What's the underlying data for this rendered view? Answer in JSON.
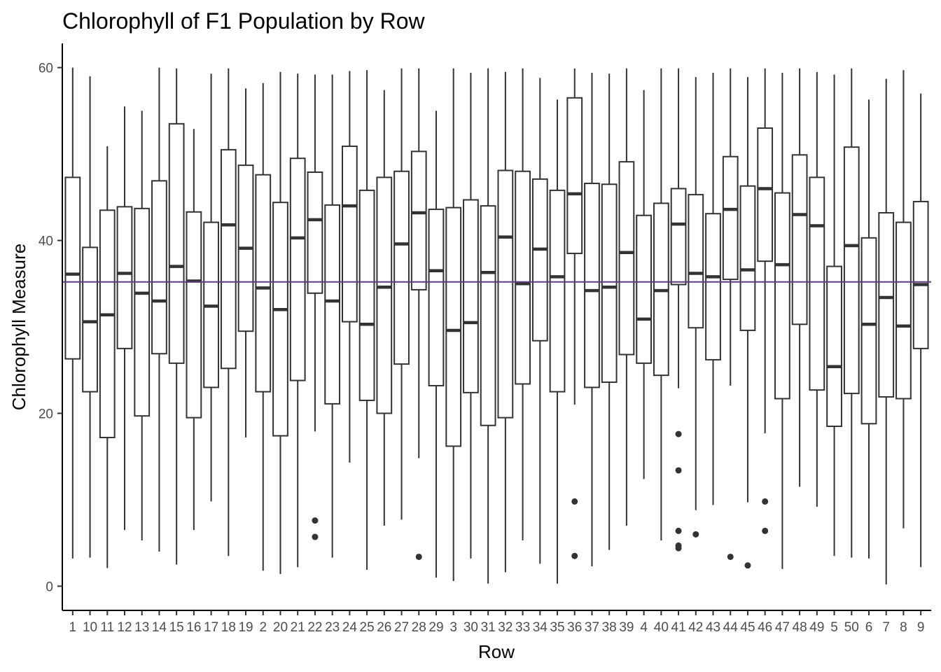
{
  "chart_data": {
    "type": "boxplot",
    "title": "Chlorophyll of F1 Population by Row",
    "xlabel": "Row",
    "ylabel": "Chlorophyll Measure",
    "ylim": [
      -2.8,
      62.8
    ],
    "yticks": [
      0,
      20,
      40,
      60
    ],
    "grid": false,
    "legend": "none",
    "reference_line": {
      "y": 35.2,
      "color": "#5e3c7e"
    },
    "colors": {
      "box": "#333333",
      "axis": "#000000",
      "tick_text": "#4d4d4d",
      "background": "#ffffff"
    },
    "categories": [
      "1",
      "10",
      "11",
      "12",
      "13",
      "14",
      "15",
      "16",
      "17",
      "18",
      "19",
      "2",
      "20",
      "21",
      "22",
      "23",
      "24",
      "25",
      "26",
      "27",
      "28",
      "29",
      "3",
      "30",
      "31",
      "32",
      "33",
      "34",
      "35",
      "36",
      "37",
      "38",
      "39",
      "4",
      "40",
      "41",
      "42",
      "43",
      "44",
      "45",
      "46",
      "47",
      "48",
      "49",
      "5",
      "50",
      "6",
      "7",
      "8",
      "9"
    ],
    "boxes": [
      {
        "label": "1",
        "min": 3.2,
        "q1": 26.3,
        "median": 36.1,
        "q3": 47.3,
        "max": 60.0,
        "outliers": []
      },
      {
        "label": "10",
        "min": 3.3,
        "q1": 22.5,
        "median": 30.6,
        "q3": 39.2,
        "max": 59.0,
        "outliers": []
      },
      {
        "label": "11",
        "min": 2.1,
        "q1": 17.2,
        "median": 31.4,
        "q3": 43.5,
        "max": 50.9,
        "outliers": []
      },
      {
        "label": "12",
        "min": 6.5,
        "q1": 27.5,
        "median": 36.2,
        "q3": 43.9,
        "max": 55.5,
        "outliers": []
      },
      {
        "label": "13",
        "min": 5.3,
        "q1": 19.7,
        "median": 33.9,
        "q3": 43.7,
        "max": 55.0,
        "outliers": []
      },
      {
        "label": "14",
        "min": 4.0,
        "q1": 26.9,
        "median": 33.0,
        "q3": 46.9,
        "max": 60.0,
        "outliers": []
      },
      {
        "label": "15",
        "min": 2.5,
        "q1": 25.8,
        "median": 37.0,
        "q3": 53.5,
        "max": 59.9,
        "outliers": []
      },
      {
        "label": "16",
        "min": 6.5,
        "q1": 19.5,
        "median": 35.3,
        "q3": 43.3,
        "max": 52.9,
        "outliers": []
      },
      {
        "label": "17",
        "min": 9.8,
        "q1": 23.0,
        "median": 32.4,
        "q3": 42.1,
        "max": 59.3,
        "outliers": []
      },
      {
        "label": "18",
        "min": 3.5,
        "q1": 25.2,
        "median": 41.8,
        "q3": 50.5,
        "max": 59.9,
        "outliers": []
      },
      {
        "label": "19",
        "min": 17.2,
        "q1": 29.5,
        "median": 39.1,
        "q3": 48.7,
        "max": 57.6,
        "outliers": []
      },
      {
        "label": "2",
        "min": 1.8,
        "q1": 22.5,
        "median": 34.5,
        "q3": 47.6,
        "max": 58.2,
        "outliers": []
      },
      {
        "label": "20",
        "min": 1.4,
        "q1": 17.4,
        "median": 32.0,
        "q3": 44.4,
        "max": 59.5,
        "outliers": []
      },
      {
        "label": "21",
        "min": 2.2,
        "q1": 23.8,
        "median": 40.3,
        "q3": 49.5,
        "max": 59.3,
        "outliers": []
      },
      {
        "label": "22",
        "min": 17.9,
        "q1": 33.9,
        "median": 42.4,
        "q3": 47.9,
        "max": 59.2,
        "outliers": [
          7.6,
          5.7
        ]
      },
      {
        "label": "23",
        "min": 3.3,
        "q1": 21.1,
        "median": 33.0,
        "q3": 44.1,
        "max": 59.2,
        "outliers": []
      },
      {
        "label": "24",
        "min": 14.3,
        "q1": 30.6,
        "median": 44.0,
        "q3": 50.9,
        "max": 59.6,
        "outliers": []
      },
      {
        "label": "25",
        "min": 1.9,
        "q1": 21.5,
        "median": 30.3,
        "q3": 45.8,
        "max": 59.7,
        "outliers": []
      },
      {
        "label": "26",
        "min": 7.0,
        "q1": 20.0,
        "median": 34.6,
        "q3": 47.3,
        "max": 57.4,
        "outliers": []
      },
      {
        "label": "27",
        "min": 7.7,
        "q1": 25.7,
        "median": 39.6,
        "q3": 48.0,
        "max": 59.9,
        "outliers": []
      },
      {
        "label": "28",
        "min": 14.8,
        "q1": 34.3,
        "median": 43.2,
        "q3": 50.3,
        "max": 59.9,
        "outliers": [
          3.4
        ]
      },
      {
        "label": "29",
        "min": 1.0,
        "q1": 23.2,
        "median": 36.5,
        "q3": 43.6,
        "max": 55.0,
        "outliers": []
      },
      {
        "label": "3",
        "min": 0.6,
        "q1": 16.2,
        "median": 29.6,
        "q3": 43.8,
        "max": 59.9,
        "outliers": []
      },
      {
        "label": "30",
        "min": 3.2,
        "q1": 22.4,
        "median": 30.5,
        "q3": 44.7,
        "max": 59.4,
        "outliers": []
      },
      {
        "label": "31",
        "min": 0.3,
        "q1": 18.6,
        "median": 36.3,
        "q3": 44.0,
        "max": 59.9,
        "outliers": []
      },
      {
        "label": "32",
        "min": 1.6,
        "q1": 19.5,
        "median": 40.4,
        "q3": 48.1,
        "max": 59.5,
        "outliers": []
      },
      {
        "label": "33",
        "min": 5.3,
        "q1": 23.4,
        "median": 35.0,
        "q3": 48.0,
        "max": 59.9,
        "outliers": []
      },
      {
        "label": "34",
        "min": 2.6,
        "q1": 28.4,
        "median": 39.0,
        "q3": 47.1,
        "max": 58.8,
        "outliers": []
      },
      {
        "label": "35",
        "min": 0.3,
        "q1": 22.5,
        "median": 35.8,
        "q3": 45.8,
        "max": 56.3,
        "outliers": []
      },
      {
        "label": "36",
        "min": 21.0,
        "q1": 38.5,
        "median": 45.4,
        "q3": 56.5,
        "max": 59.9,
        "outliers": [
          9.8,
          3.5
        ]
      },
      {
        "label": "37",
        "min": 2.3,
        "q1": 23.0,
        "median": 34.2,
        "q3": 46.6,
        "max": 59.4,
        "outliers": []
      },
      {
        "label": "38",
        "min": 4.2,
        "q1": 23.6,
        "median": 34.6,
        "q3": 46.5,
        "max": 59.3,
        "outliers": []
      },
      {
        "label": "39",
        "min": 7.0,
        "q1": 26.8,
        "median": 38.6,
        "q3": 49.1,
        "max": 59.9,
        "outliers": []
      },
      {
        "label": "4",
        "min": 12.4,
        "q1": 25.8,
        "median": 30.9,
        "q3": 42.9,
        "max": 57.4,
        "outliers": []
      },
      {
        "label": "40",
        "min": 5.3,
        "q1": 24.4,
        "median": 34.2,
        "q3": 44.3,
        "max": 59.9,
        "outliers": []
      },
      {
        "label": "41",
        "min": 22.9,
        "q1": 34.9,
        "median": 41.9,
        "q3": 46.0,
        "max": 59.9,
        "outliers": [
          17.6,
          13.4,
          6.4,
          4.7,
          4.4
        ]
      },
      {
        "label": "42",
        "min": 8.8,
        "q1": 29.9,
        "median": 36.2,
        "q3": 45.3,
        "max": 58.9,
        "outliers": [
          6.0
        ]
      },
      {
        "label": "43",
        "min": 9.4,
        "q1": 26.2,
        "median": 35.8,
        "q3": 43.1,
        "max": 59.4,
        "outliers": []
      },
      {
        "label": "44",
        "min": 23.2,
        "q1": 35.5,
        "median": 43.6,
        "q3": 49.7,
        "max": 59.9,
        "outliers": [
          3.4
        ]
      },
      {
        "label": "45",
        "min": 9.7,
        "q1": 29.6,
        "median": 36.6,
        "q3": 46.3,
        "max": 58.9,
        "outliers": [
          2.4
        ]
      },
      {
        "label": "46",
        "min": 17.7,
        "q1": 37.6,
        "median": 46.0,
        "q3": 53.0,
        "max": 59.9,
        "outliers": [
          9.8,
          6.4
        ]
      },
      {
        "label": "47",
        "min": 2.0,
        "q1": 21.7,
        "median": 37.2,
        "q3": 45.5,
        "max": 59.4,
        "outliers": []
      },
      {
        "label": "48",
        "min": 11.5,
        "q1": 30.3,
        "median": 43.0,
        "q3": 49.9,
        "max": 59.9,
        "outliers": []
      },
      {
        "label": "49",
        "min": 9.2,
        "q1": 22.7,
        "median": 41.7,
        "q3": 47.3,
        "max": 59.5,
        "outliers": []
      },
      {
        "label": "5",
        "min": 3.5,
        "q1": 18.5,
        "median": 25.4,
        "q3": 37.0,
        "max": 59.2,
        "outliers": []
      },
      {
        "label": "50",
        "min": 3.3,
        "q1": 22.3,
        "median": 39.4,
        "q3": 50.8,
        "max": 59.9,
        "outliers": []
      },
      {
        "label": "6",
        "min": 3.2,
        "q1": 18.8,
        "median": 30.3,
        "q3": 40.3,
        "max": 56.3,
        "outliers": []
      },
      {
        "label": "7",
        "min": 0.2,
        "q1": 21.9,
        "median": 33.4,
        "q3": 43.2,
        "max": 58.7,
        "outliers": []
      },
      {
        "label": "8",
        "min": 6.7,
        "q1": 21.7,
        "median": 30.1,
        "q3": 42.1,
        "max": 59.7,
        "outliers": []
      },
      {
        "label": "9",
        "min": 2.2,
        "q1": 27.5,
        "median": 34.9,
        "q3": 44.5,
        "max": 57.0,
        "outliers": []
      }
    ]
  }
}
